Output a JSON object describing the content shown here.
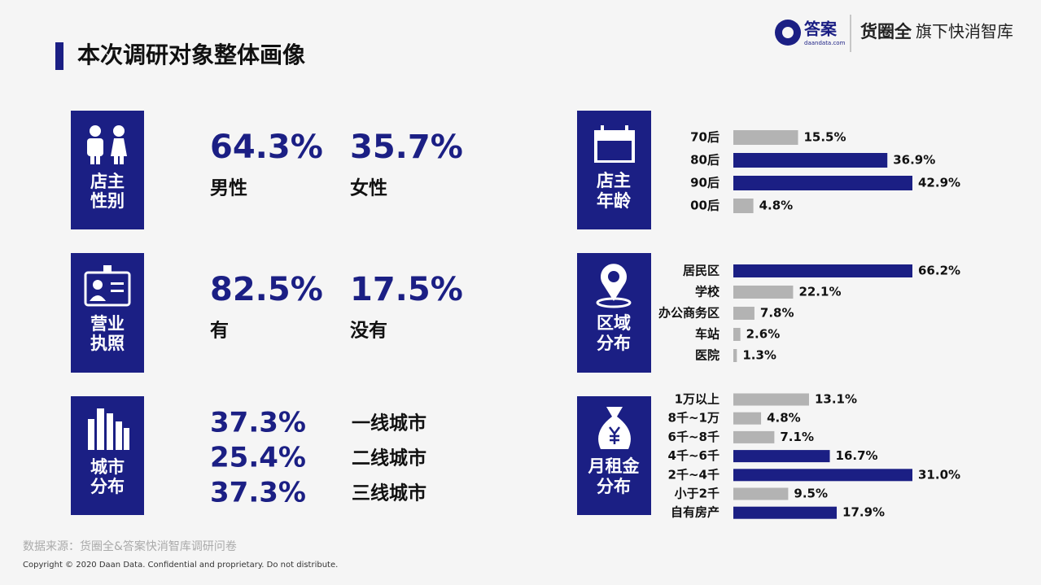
{
  "header": {
    "title": "本次调研对象整体画像",
    "logo": "答案",
    "logo_sub": "daandata.com",
    "brand": "货圈全",
    "brand_tail": "旗下快消智库"
  },
  "panels": [
    {
      "label": [
        "店主",
        "性别"
      ],
      "stats": [
        {
          "value": "64.3%",
          "label": "男性"
        },
        {
          "value": "35.7%",
          "label": "女性"
        }
      ]
    },
    {
      "label": [
        "营业",
        "执照"
      ],
      "stats": [
        {
          "value": "82.5%",
          "label": "有"
        },
        {
          "value": "17.5%",
          "label": "没有"
        }
      ]
    },
    {
      "label": [
        "城市",
        "分布"
      ],
      "stats": [
        {
          "value": "37.3%",
          "label": "一线城市"
        },
        {
          "value": "25.4%",
          "label": "二线城市"
        },
        {
          "value": "37.3%",
          "label": "三线城市"
        }
      ]
    }
  ],
  "chart_data": [
    {
      "type": "bar",
      "orientation": "horizontal",
      "title": [
        "店主",
        "年龄"
      ],
      "categories": [
        "70后",
        "80后",
        "90后",
        "00后"
      ],
      "values": [
        15.5,
        36.9,
        42.9,
        4.8
      ],
      "value_labels": [
        "15.5%",
        "36.9%",
        "42.9%",
        "4.8%"
      ],
      "colors": [
        "#b3b3b3",
        "#1b1f84",
        "#1b1f84",
        "#b3b3b3"
      ]
    },
    {
      "type": "bar",
      "orientation": "horizontal",
      "title": [
        "区域",
        "分布"
      ],
      "categories": [
        "居民区",
        "学校",
        "办公商务区",
        "车站",
        "医院"
      ],
      "values": [
        66.2,
        22.1,
        7.8,
        2.6,
        1.3
      ],
      "value_labels": [
        "66.2%",
        "22.1%",
        "7.8%",
        "2.6%",
        "1.3%"
      ],
      "colors": [
        "#1b1f84",
        "#b3b3b3",
        "#b3b3b3",
        "#b3b3b3",
        "#b3b3b3"
      ]
    },
    {
      "type": "bar",
      "orientation": "horizontal",
      "title": [
        "月租金",
        "分布"
      ],
      "categories": [
        "1万以上",
        "8千~1万",
        "6千~8千",
        "4千~6千",
        "2千~4千",
        "小于2千",
        "自有房产"
      ],
      "values": [
        13.1,
        4.8,
        7.1,
        16.7,
        31.0,
        9.5,
        17.9
      ],
      "value_labels": [
        "13.1%",
        "4.8%",
        "7.1%",
        "16.7%",
        "31.0%",
        "9.5%",
        "17.9%"
      ],
      "colors": [
        "#b3b3b3",
        "#b3b3b3",
        "#b3b3b3",
        "#1b1f84",
        "#1b1f84",
        "#b3b3b3",
        "#1b1f84"
      ]
    }
  ],
  "footer": {
    "source": "数据来源：货圈全&答案快消智库调研问卷",
    "copyright": "Copyright © 2020 Daan Data. Confidential and proprietary. Do not distribute."
  }
}
